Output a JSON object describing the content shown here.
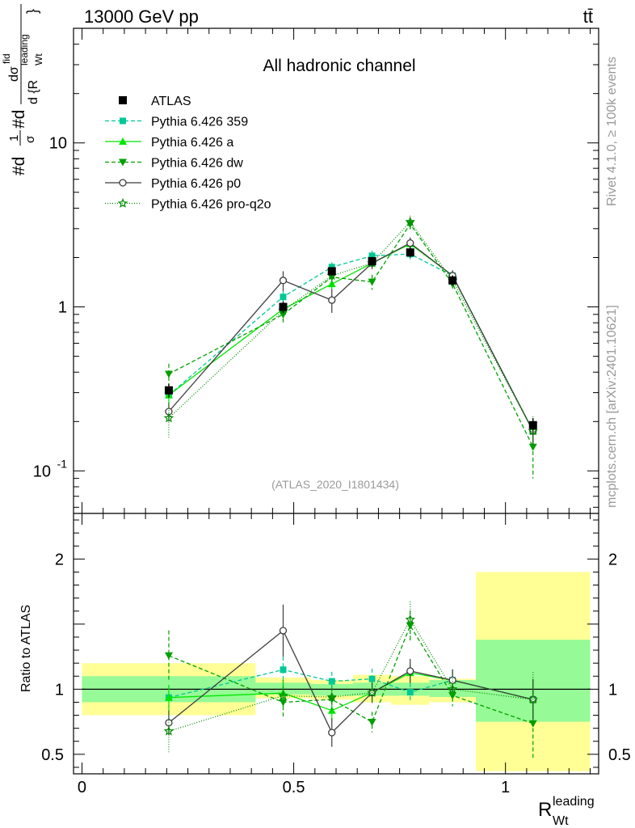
{
  "header": {
    "energy_label": "13000 GeV pp",
    "process_label": "tt̄"
  },
  "side_labels": {
    "rivet": "Rivet 4.1.0, ≥ 100k events",
    "source": "mcplots.cern.ch [arXiv:2401.10621]"
  },
  "colors": {
    "atlas": "#000000",
    "p359": "#00c896",
    "pa": "#00e600",
    "pdw": "#00a000",
    "pp0": "#3c3c3c",
    "pq2o": "#008c00",
    "band_stat": "#96fa96",
    "band_tot": "#ffff96"
  },
  "chart_data": {
    "type": "line",
    "title": "All hadronic channel",
    "analysis": "(ATLAS_2020_I1801434)",
    "xlabel": {
      "main": "R",
      "sub": "Wt",
      "sup": "leading"
    },
    "ylabel": {
      "prefix": "#d",
      "frac1_num": "1",
      "frac1_den": "σ",
      "mid": "#d",
      "frac2_num": "dσ",
      "frac2_num_sup": "fid",
      "frac2_den": "d {R",
      "frac2_den_sub": "Wt",
      "frac2_den_sup": "leading",
      "close": "}"
    },
    "ratio_ylabel": "Ratio to ATLAS",
    "xlim": [
      -0.02,
      1.22
    ],
    "ylim_main": [
      0.055,
      50
    ],
    "ylim_ratio": [
      0.35,
      2.35
    ],
    "x_ticks": [
      "0",
      "0.5",
      "1"
    ],
    "x_tick_values": [
      0,
      0.5,
      1
    ],
    "y_ticks_main": [
      "10",
      "1",
      "10^-1"
    ],
    "y_tick_values_main": [
      10,
      1,
      0.1
    ],
    "y_ticks_ratio": [
      "2",
      "1",
      "0.5"
    ],
    "y_tick_values_ratio": [
      2,
      1,
      0.5
    ],
    "bins": [
      [
        0,
        0.41
      ],
      [
        0.41,
        0.54
      ],
      [
        0.54,
        0.64
      ],
      [
        0.64,
        0.73
      ],
      [
        0.73,
        0.82
      ],
      [
        0.82,
        0.93
      ],
      [
        0.93,
        1.2
      ]
    ],
    "data_x": [
      0.205,
      0.475,
      0.59,
      0.685,
      0.775,
      0.875,
      1.065
    ],
    "atlas": {
      "name": "ATLAS",
      "values": [
        0.31,
        1.0,
        1.65,
        1.9,
        2.15,
        1.45,
        0.19
      ],
      "errors": [
        0.03,
        0.08,
        0.1,
        0.12,
        0.15,
        0.1,
        0.02
      ]
    },
    "band_stat": [
      [
        0.9,
        1.1
      ],
      [
        0.96,
        1.05
      ],
      [
        0.95,
        1.04
      ],
      [
        0.95,
        1.05
      ],
      [
        0.95,
        1.05
      ],
      [
        0.94,
        1.07
      ],
      [
        0.75,
        1.38
      ]
    ],
    "band_total": [
      [
        0.8,
        1.2
      ],
      [
        0.93,
        1.09
      ],
      [
        0.92,
        1.07
      ],
      [
        0.9,
        1.11
      ],
      [
        0.88,
        1.1
      ],
      [
        0.9,
        1.08
      ],
      [
        0.37,
        1.9
      ]
    ],
    "series": [
      {
        "name": "Pythia 6.426 359",
        "key": "p359",
        "marker": "square",
        "dash": "5,3",
        "values": [
          0.29,
          1.15,
          1.75,
          2.05,
          2.1,
          1.55,
          0.175
        ],
        "errors": [
          0.03,
          0.1,
          0.12,
          0.15,
          0.15,
          0.12,
          0.03
        ]
      },
      {
        "name": "Pythia 6.426 a",
        "key": "pa",
        "marker": "triangle-up",
        "dash": "",
        "values": [
          0.29,
          0.97,
          1.38,
          1.85,
          2.42,
          1.55,
          0.175
        ],
        "errors": [
          0.03,
          0.1,
          0.12,
          0.15,
          0.15,
          0.12,
          0.03
        ]
      },
      {
        "name": "Pythia 6.426 dw",
        "key": "pdw",
        "marker": "triangle-down",
        "dash": "5,3",
        "values": [
          0.39,
          0.9,
          1.52,
          1.42,
          3.2,
          1.38,
          0.14
        ],
        "errors": [
          0.06,
          0.12,
          0.15,
          0.15,
          0.25,
          0.12,
          0.05
        ]
      },
      {
        "name": "Pythia 6.426 p0",
        "key": "pp0",
        "marker": "circle-open",
        "dash": "",
        "values": [
          0.23,
          1.45,
          1.1,
          1.85,
          2.45,
          1.55,
          0.175
        ],
        "errors": [
          0.03,
          0.2,
          0.18,
          0.15,
          0.2,
          0.12,
          0.03
        ]
      },
      {
        "name": "Pythia 6.426 pro-q2o",
        "key": "pq2o",
        "marker": "star-open",
        "dash": "1,2",
        "values": [
          0.21,
          0.95,
          1.55,
          1.85,
          3.3,
          1.45,
          0.175
        ],
        "errors": [
          0.05,
          0.12,
          0.15,
          0.15,
          0.3,
          0.12,
          0.04
        ]
      }
    ]
  }
}
